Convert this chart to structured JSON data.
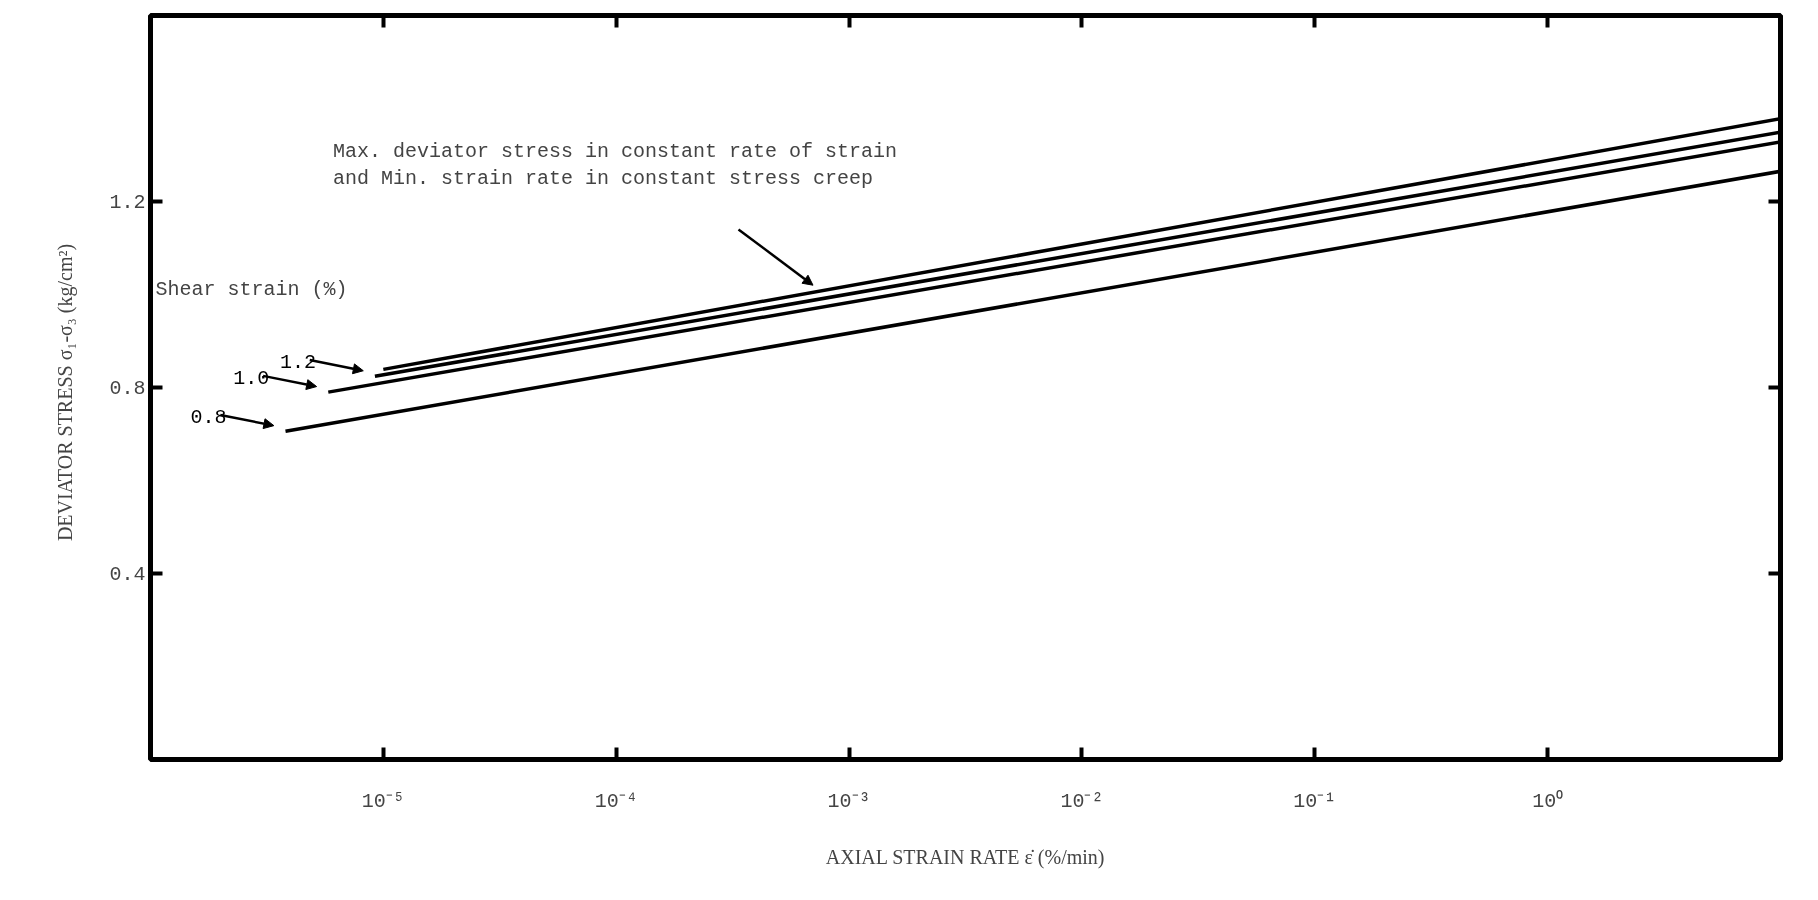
{
  "chart_data": {
    "type": "line",
    "xlabel": "AXIAL STRAIN RATE ε̇ (%/min)",
    "ylabel": "DEVIATOR STRESS  σ₁-σ₃  (kg/cm²)",
    "log": "x",
    "xlim": [
      1e-06,
      10
    ],
    "xticks": [
      {
        "value": 1e-05,
        "label": "10⁻⁵"
      },
      {
        "value": 0.0001,
        "label": "10⁻⁴"
      },
      {
        "value": 0.001,
        "label": "10⁻³"
      },
      {
        "value": 0.01,
        "label": "10⁻²"
      },
      {
        "value": 0.1,
        "label": "10⁻¹"
      },
      {
        "value": 1,
        "label": "10⁰"
      }
    ],
    "ylim": [
      0,
      1.6
    ],
    "yticks": [
      0.4,
      0.8,
      1.2
    ],
    "grid": false,
    "legend": "left",
    "marker": "none",
    "line_style": "solid",
    "legend_title": "Shear strain (%)",
    "series": [
      {
        "color": "#000000",
        "x": [
          1e-05,
          10
        ],
        "values": [
          0.839,
          1.378
        ]
      },
      {
        "name": "1.2",
        "color": "#000000",
        "x": [
          9.2e-06,
          10
        ],
        "values": [
          0.824,
          1.349
        ]
      },
      {
        "name": "1.0",
        "color": "#000000",
        "x": [
          5.8e-06,
          10
        ],
        "values": [
          0.79,
          1.328
        ]
      },
      {
        "name": "0.8",
        "color": "#000000",
        "x": [
          3.8e-06,
          10
        ],
        "values": [
          0.706,
          1.265
        ]
      }
    ],
    "annotations": [
      "Max. deviator stress in constant rate of strain\nand Min. strain rate in constant stress creep"
    ]
  }
}
